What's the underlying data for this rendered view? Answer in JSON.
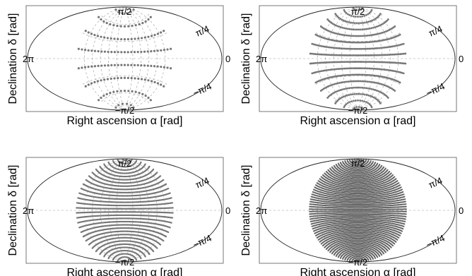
{
  "chart_data": [
    {
      "type": "scatter",
      "projection": "aitoff",
      "xlabel": "Right ascension α [rad]",
      "ylabel": "Declination δ [rad]",
      "x_range": [
        0,
        6.283
      ],
      "y_range": [
        -1.571,
        1.571
      ],
      "longitude_labels": {
        "left": "2π",
        "right": "0"
      },
      "latitude_labels": {
        "top": "π/2",
        "upper": "π/4",
        "lower": "−π/4",
        "bottom": "−π/2"
      },
      "grid": true,
      "point_color": "#777777",
      "rings": 8,
      "points_per_ring": 30
    },
    {
      "type": "scatter",
      "projection": "aitoff",
      "xlabel": "Right ascension α [rad]",
      "ylabel": "Declination δ [rad]",
      "x_range": [
        0,
        6.283
      ],
      "y_range": [
        -1.571,
        1.571
      ],
      "longitude_labels": {
        "left": "2π",
        "right": "0"
      },
      "latitude_labels": {
        "top": "π/2",
        "upper": "π/4",
        "lower": "−π/4",
        "bottom": "−π/2"
      },
      "grid": true,
      "point_color": "#777777",
      "rings": 16,
      "points_per_ring": 60
    },
    {
      "type": "scatter",
      "projection": "aitoff",
      "xlabel": "Right ascension α [rad]",
      "ylabel": "Declination δ [rad]",
      "x_range": [
        0,
        6.283
      ],
      "y_range": [
        -1.571,
        1.571
      ],
      "longitude_labels": {
        "left": "2π",
        "right": "0"
      },
      "latitude_labels": {
        "top": "π/2",
        "upper": "π/4",
        "lower": "−π/4",
        "bottom": "−π/2"
      },
      "grid": true,
      "point_color": "#777777",
      "rings": 32,
      "points_per_ring": 120
    },
    {
      "type": "scatter",
      "projection": "aitoff",
      "xlabel": "Right ascension α [rad]",
      "ylabel": "Declination δ [rad]",
      "x_range": [
        0,
        6.283
      ],
      "y_range": [
        -1.571,
        1.571
      ],
      "longitude_labels": {
        "left": "2π",
        "right": "0"
      },
      "latitude_labels": {
        "top": "π/2",
        "upper": "π/4",
        "lower": "−π/4",
        "bottom": "−π/2"
      },
      "grid": true,
      "point_color": "#666666",
      "rings": 64,
      "points_per_ring": 240
    }
  ]
}
